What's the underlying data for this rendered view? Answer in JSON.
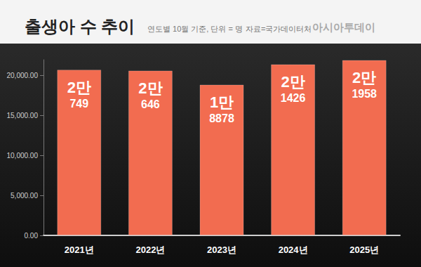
{
  "chart_data": {
    "type": "bar",
    "title": "출생아 수 추이",
    "subtitle": "연도별 10월 기준, 단위 = 명",
    "annotations": [
      "자료=국가데이터처",
      "아시아투데이"
    ],
    "categories": [
      "2021년",
      "2022년",
      "2023년",
      "2024년",
      "2025년"
    ],
    "values": [
      20749,
      20646,
      18878,
      21426,
      21958
    ],
    "value_labels": [
      "2만\n749",
      "2만\n646",
      "1만\n8878",
      "2만\n1426",
      "2만\n1958"
    ],
    "data_labels": true,
    "color": "#f26c50",
    "ylim": [
      0,
      22000
    ],
    "yticks": [
      {
        "value": 0,
        "label": "0.00"
      },
      {
        "value": 5000,
        "label": "5,000.00"
      },
      {
        "value": 10000,
        "label": "10,000.00"
      },
      {
        "value": 15000,
        "label": "15,000.00"
      },
      {
        "value": 20000,
        "label": "20,000.00"
      }
    ],
    "grid": false
  }
}
